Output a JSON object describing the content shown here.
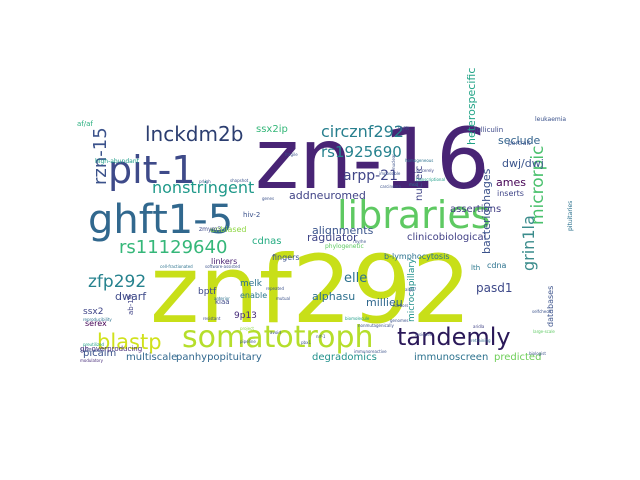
{
  "word_cloud": {
    "words": [
      {
        "text": "znf292",
        "color": "#c8df18"
      },
      {
        "text": "zn-16",
        "color": "#482475"
      },
      {
        "text": "ghft1-5",
        "color": "#31688e"
      },
      {
        "text": "libraries",
        "color": "#5ec962"
      },
      {
        "text": "pit-1",
        "color": "#3e4a89"
      },
      {
        "text": "somatotroph",
        "color": "#b5de2b"
      },
      {
        "text": "tandemly",
        "color": "#2a1858"
      },
      {
        "text": "lnckdm2b",
        "color": "#2c3e70"
      },
      {
        "text": "circznf292",
        "color": "#277f8e"
      },
      {
        "text": "rs11129640",
        "color": "#35b779"
      },
      {
        "text": "rs1925690",
        "color": "#26828e"
      },
      {
        "text": "nonstringent",
        "color": "#1f998a"
      },
      {
        "text": "blastp",
        "color": "#d0e11c"
      },
      {
        "text": "rzn-15",
        "color": "#3b528b"
      },
      {
        "text": "zfp292",
        "color": "#26828e"
      },
      {
        "text": "arpp-21",
        "color": "#404688"
      },
      {
        "text": "grin1la",
        "color": "#3b8c8c"
      },
      {
        "text": "microrpic",
        "color": "#4ac16d"
      },
      {
        "text": "dwj/dwj",
        "color": "#3a548c"
      },
      {
        "text": "seclude",
        "color": "#33638d"
      },
      {
        "text": "ames",
        "color": "#440154"
      },
      {
        "text": "ssx2ip",
        "color": "#35b779"
      },
      {
        "text": "addneuromed",
        "color": "#414487"
      },
      {
        "text": "ragulator",
        "color": "#404688"
      },
      {
        "text": "alignments",
        "color": "#3a548c"
      },
      {
        "text": "clinicobiological",
        "color": "#424186"
      },
      {
        "text": "assertions",
        "color": "#433e85"
      },
      {
        "text": "unbiased",
        "color": "#8fd744"
      },
      {
        "text": "cdnas",
        "color": "#25ac82"
      },
      {
        "text": "fingers",
        "color": "#3b528b"
      },
      {
        "text": "elle",
        "color": "#2c728e"
      },
      {
        "text": "alphasu",
        "color": "#2d708e"
      },
      {
        "text": "pasd1",
        "color": "#3e4989"
      },
      {
        "text": "millieu",
        "color": "#31688e"
      },
      {
        "text": "dwarf",
        "color": "#3e4a89"
      },
      {
        "text": "9p13",
        "color": "#472c7a"
      },
      {
        "text": "immunoscreen",
        "color": "#2c728e"
      },
      {
        "text": "degradomics",
        "color": "#21918c"
      },
      {
        "text": "panhypopituitary",
        "color": "#31688e"
      },
      {
        "text": "multiscale",
        "color": "#31688e"
      },
      {
        "text": "picalm",
        "color": "#3b528b"
      },
      {
        "text": "predicted",
        "color": "#6ece58"
      },
      {
        "text": "ssx2",
        "color": "#404688"
      },
      {
        "text": "serex",
        "color": "#440154"
      },
      {
        "text": "bptf",
        "color": "#3e4989"
      },
      {
        "text": "melk",
        "color": "#2c728e"
      },
      {
        "text": "enable",
        "color": "#2a778e"
      },
      {
        "text": "linkers",
        "color": "#482071"
      },
      {
        "text": "hiv-2",
        "color": "#3b528b"
      },
      {
        "text": "cdna",
        "color": "#2c728e"
      },
      {
        "text": "inserts",
        "color": "#404688"
      },
      {
        "text": "bacteriophages",
        "color": "#3b528b"
      },
      {
        "text": "nucleic",
        "color": "#414487"
      },
      {
        "text": "heterospecific",
        "color": "#20a386"
      },
      {
        "text": "b-lymphocytosis",
        "color": "#2c728e"
      },
      {
        "text": "databases",
        "color": "#3b528b"
      },
      {
        "text": "microcapillary",
        "color": "#21918c"
      },
      {
        "text": "kiaa",
        "color": "#3e4989"
      },
      {
        "text": "lth",
        "color": "#2a788e"
      },
      {
        "text": "gh-overproducing",
        "color": "#472c7a"
      },
      {
        "text": "high-abundant",
        "color": "#1f9e89"
      },
      {
        "text": "af/af",
        "color": "#29af7f"
      },
      {
        "text": "folliculin",
        "color": "#3e4989"
      },
      {
        "text": "leukaemia",
        "color": "#3b528b"
      },
      {
        "text": "portrait",
        "color": "#3b528b"
      },
      {
        "text": "pituitaries",
        "color": "#2c728e"
      },
      {
        "text": "ab-19",
        "color": "#414487"
      },
      {
        "text": "phylogenetic",
        "color": "#5ec962"
      },
      {
        "text": "zmym3",
        "color": "#3e4a89"
      },
      {
        "text": "impossible",
        "color": "#3b528b"
      },
      {
        "text": "reproducibility",
        "color": "#2c728e"
      },
      {
        "text": "resistant",
        "color": "#3e4989"
      },
      {
        "text": "software-assisted",
        "color": "#3b528b"
      },
      {
        "text": "anterior",
        "color": "#2c728e"
      },
      {
        "text": "prl/gh",
        "color": "#3b528b"
      },
      {
        "text": "preutilized",
        "color": "#20a386"
      },
      {
        "text": "modulatory",
        "color": "#472c7a"
      },
      {
        "text": "harbors",
        "color": "#3b528b"
      },
      {
        "text": "avoid",
        "color": "#3b528b"
      },
      {
        "text": "aridla",
        "color": "#414487"
      },
      {
        "text": "retraining",
        "color": "#31688e"
      },
      {
        "text": "residues",
        "color": "#3e4989"
      },
      {
        "text": "biomolecule",
        "color": "#1f9e89"
      },
      {
        "text": "pipeline",
        "color": "#3b528b"
      },
      {
        "text": "project",
        "color": "#8fd744"
      },
      {
        "text": "immunoreactive",
        "color": "#3b528b"
      },
      {
        "text": "nonmutagenically",
        "color": "#3b528b"
      },
      {
        "text": "large-scale",
        "color": "#5ec962"
      },
      {
        "text": "biologist",
        "color": "#3b528b"
      },
      {
        "text": "selfcheck",
        "color": "#3b528b"
      },
      {
        "text": "sincerely",
        "color": "#3e4989"
      },
      {
        "text": "lit/lit",
        "color": "#3b528b"
      },
      {
        "text": "mscl",
        "color": "#2c728e"
      },
      {
        "text": "carcinoma",
        "color": "#3b528b"
      },
      {
        "text": "nuclear",
        "color": "#3b528b"
      },
      {
        "text": "homogeneous",
        "color": "#2c728e"
      },
      {
        "text": "transcriptional",
        "color": "#1f9e89"
      },
      {
        "text": "2193 amino",
        "color": "#3b528b"
      },
      {
        "text": "shapshot",
        "color": "#3b528b"
      },
      {
        "text": "genes",
        "color": "#3b528b"
      },
      {
        "text": "fragile",
        "color": "#3b528b"
      },
      {
        "text": "rhyrhe",
        "color": "#3b528b"
      },
      {
        "text": "pbx1",
        "color": "#3b528b"
      },
      {
        "text": "mutual",
        "color": "#3b528b"
      },
      {
        "text": "repeated",
        "color": "#3b528b"
      },
      {
        "text": "cell-fractionated",
        "color": "#2c728e"
      },
      {
        "text": "genomes",
        "color": "#3b528b"
      },
      {
        "text": "alg27",
        "color": "#3b528b"
      },
      {
        "text": "nrf-1",
        "color": "#3b528b"
      }
    ]
  }
}
